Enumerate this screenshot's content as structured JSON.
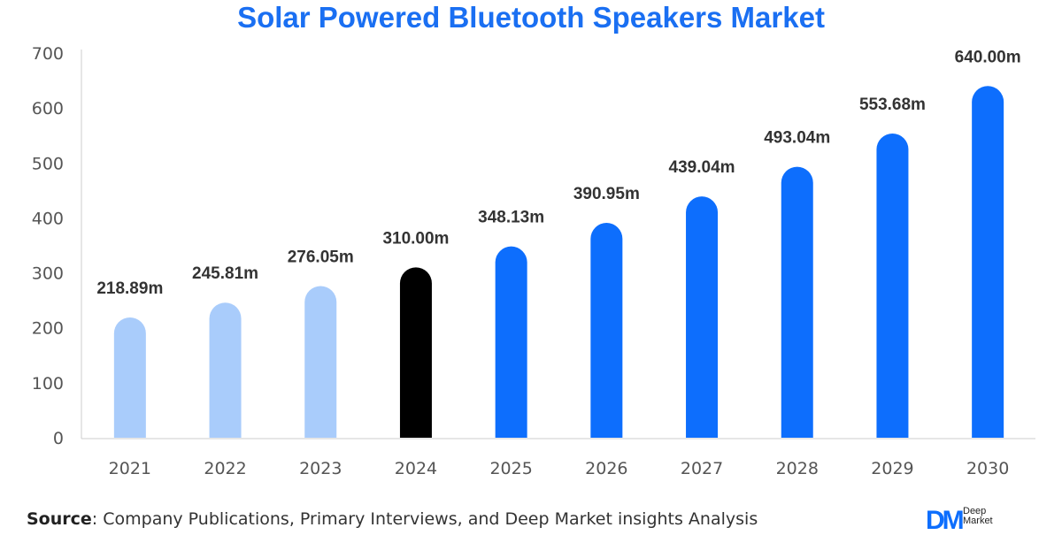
{
  "colors": {
    "title": "#1a6ff2",
    "historical": "#a9ccfb",
    "base_year": "#000000",
    "forecast": "#0d6efd",
    "axis_text": "#555555",
    "label_text": "#333333",
    "gridline": "#cccccc"
  },
  "chart_data": {
    "type": "bar",
    "title": "Solar Powered Bluetooth Speakers Market",
    "xlabel": "",
    "ylabel": "",
    "ylim": [
      0,
      700
    ],
    "yticks": [
      0,
      100,
      200,
      300,
      400,
      500,
      600,
      700
    ],
    "grid": false,
    "categories": [
      "2021",
      "2022",
      "2023",
      "2024",
      "2025",
      "2026",
      "2027",
      "2028",
      "2029",
      "2030"
    ],
    "values": [
      218.89,
      245.81,
      276.05,
      310.0,
      348.13,
      390.95,
      439.04,
      493.04,
      553.68,
      640.0
    ],
    "data_labels": [
      "218.89m",
      "245.81m",
      "276.05m",
      "310.00m",
      "348.13m",
      "390.95m",
      "439.04m",
      "493.04m",
      "553.68m",
      "640.00m"
    ],
    "bar_groups": [
      "historical",
      "historical",
      "historical",
      "base_year",
      "forecast",
      "forecast",
      "forecast",
      "forecast",
      "forecast",
      "forecast"
    ]
  },
  "source": {
    "label": "Source",
    "text": ": Company Publications, Primary Interviews, and Deep Market insights Analysis"
  },
  "logo": {
    "mark": "DM",
    "name_line1": "Deep",
    "name_line2": "Market"
  }
}
